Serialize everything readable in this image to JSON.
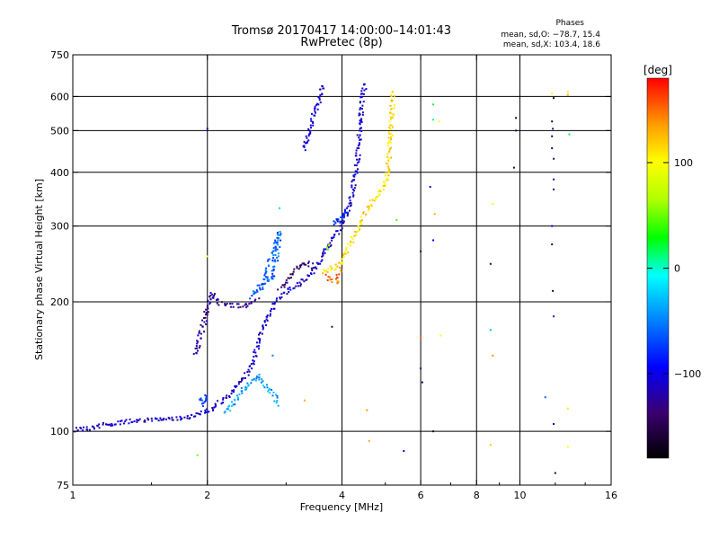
{
  "header": {
    "title": "Tromsø 20170417 14:00:00–14:01:43",
    "subtitle": "RwPretec (8p)"
  },
  "phase_box": {
    "title": "Phases",
    "line_o": "mean, sd,O: −78.7, 15.4",
    "line_x": "mean, sd,X: 103.4, 18.6"
  },
  "colorbar": {
    "unit": "[deg]",
    "range": [
      -180,
      180
    ],
    "ticks": [
      {
        "value": 100,
        "label": "100"
      },
      {
        "value": 0,
        "label": "0"
      },
      {
        "value": -100,
        "label": "−100"
      }
    ]
  },
  "chart_data": {
    "type": "scatter",
    "xlabel": "Frequency [MHz]",
    "ylabel": "Stationary phase Virtual Height [km]",
    "xscale": "log",
    "yscale": "log",
    "xlim": [
      1,
      16
    ],
    "ylim": [
      75,
      750
    ],
    "xticks": [
      {
        "value": 1,
        "label": "1"
      },
      {
        "value": 2,
        "label": "2"
      },
      {
        "value": 4,
        "label": "4"
      },
      {
        "value": 6,
        "label": "6"
      },
      {
        "value": 8,
        "label": "8"
      },
      {
        "value": 10,
        "label": "10"
      },
      {
        "value": 16,
        "label": "16"
      }
    ],
    "yticks": [
      {
        "value": 75,
        "label": "75"
      },
      {
        "value": 100,
        "label": "100"
      },
      {
        "value": 200,
        "label": "200"
      },
      {
        "value": 300,
        "label": "300"
      },
      {
        "value": 400,
        "label": "400"
      },
      {
        "value": 500,
        "label": "500"
      },
      {
        "value": 600,
        "label": "600"
      },
      {
        "value": 750,
        "label": "750"
      }
    ],
    "grid_x": [
      2,
      4,
      6,
      8,
      10
    ],
    "grid_y": [
      100,
      200,
      300,
      400,
      500,
      600
    ],
    "traces": [
      {
        "phase": -110,
        "points": [
          [
            1.0,
            101
          ],
          [
            1.1,
            102
          ],
          [
            1.2,
            104
          ],
          [
            1.3,
            105
          ],
          [
            1.45,
            106
          ],
          [
            1.6,
            107
          ],
          [
            1.8,
            108
          ],
          [
            1.95,
            110
          ],
          [
            2.05,
            113
          ],
          [
            2.15,
            118
          ],
          [
            2.25,
            122
          ],
          [
            2.35,
            128
          ],
          [
            2.45,
            136
          ],
          [
            2.55,
            148
          ],
          [
            2.6,
            160
          ],
          [
            2.7,
            180
          ],
          [
            2.8,
            195
          ],
          [
            2.9,
            205
          ],
          [
            3.0,
            212
          ],
          [
            3.2,
            220
          ],
          [
            3.4,
            232
          ],
          [
            3.55,
            248
          ],
          [
            3.7,
            265
          ],
          [
            3.85,
            282
          ],
          [
            4.0,
            300
          ],
          [
            4.1,
            320
          ],
          [
            4.2,
            350
          ],
          [
            4.3,
            400
          ],
          [
            4.35,
            450
          ],
          [
            4.4,
            520
          ],
          [
            4.45,
            600
          ],
          [
            4.5,
            650
          ]
        ]
      },
      {
        "phase": -125,
        "points": [
          [
            1.88,
            150
          ],
          [
            1.92,
            165
          ],
          [
            1.97,
            180
          ],
          [
            2.0,
            195
          ],
          [
            2.05,
            210
          ],
          [
            2.1,
            200
          ],
          [
            2.2,
            197
          ],
          [
            2.3,
            196
          ],
          [
            2.4,
            196
          ],
          [
            2.5,
            198
          ],
          [
            2.6,
            203
          ]
        ]
      },
      {
        "phase": -110,
        "points": [
          [
            3.3,
            450
          ],
          [
            3.35,
            480
          ],
          [
            3.4,
            510
          ],
          [
            3.45,
            540
          ],
          [
            3.5,
            560
          ],
          [
            3.55,
            590
          ],
          [
            3.6,
            620
          ],
          [
            3.65,
            640
          ]
        ]
      },
      {
        "phase": -60,
        "points": [
          [
            2.5,
            205
          ],
          [
            2.6,
            215
          ],
          [
            2.7,
            228
          ],
          [
            2.75,
            245
          ],
          [
            2.8,
            260
          ],
          [
            2.85,
            275
          ],
          [
            2.9,
            290
          ],
          [
            2.85,
            250
          ],
          [
            2.8,
            230
          ],
          [
            2.7,
            220
          ],
          [
            2.6,
            210
          ]
        ]
      },
      {
        "phase": -40,
        "points": [
          [
            2.2,
            110
          ],
          [
            2.3,
            118
          ],
          [
            2.4,
            125
          ],
          [
            2.5,
            130
          ],
          [
            2.6,
            135
          ],
          [
            2.7,
            128
          ],
          [
            2.8,
            122
          ],
          [
            2.9,
            115
          ]
        ]
      },
      {
        "phase": -140,
        "points": [
          [
            2.9,
            215
          ],
          [
            3.0,
            222
          ],
          [
            3.1,
            232
          ],
          [
            3.2,
            240
          ],
          [
            3.3,
            247
          ],
          [
            3.4,
            244
          ],
          [
            3.5,
            238
          ]
        ]
      },
      {
        "phase": -70,
        "points": [
          [
            1.95,
            115
          ],
          [
            2.0,
            120
          ],
          [
            1.9,
            118
          ]
        ]
      },
      {
        "phase": -80,
        "points": [
          [
            3.9,
            305
          ],
          [
            4.0,
            315
          ],
          [
            4.1,
            325
          ],
          [
            3.8,
            300
          ]
        ]
      },
      {
        "phase": 110,
        "points": [
          [
            3.6,
            235
          ],
          [
            3.75,
            238
          ],
          [
            3.85,
            240
          ],
          [
            4.0,
            248
          ],
          [
            4.1,
            262
          ],
          [
            4.2,
            278
          ],
          [
            4.3,
            292
          ],
          [
            4.4,
            305
          ],
          [
            4.5,
            318
          ],
          [
            4.6,
            332
          ],
          [
            4.7,
            345
          ],
          [
            4.8,
            352
          ],
          [
            4.9,
            365
          ],
          [
            5.0,
            380
          ],
          [
            5.05,
            400
          ],
          [
            5.1,
            430
          ],
          [
            5.12,
            460
          ],
          [
            5.15,
            500
          ],
          [
            5.18,
            560
          ],
          [
            5.2,
            620
          ]
        ]
      },
      {
        "phase": 150,
        "points": [
          [
            3.7,
            230
          ],
          [
            3.8,
            225
          ],
          [
            3.9,
            222
          ],
          [
            3.95,
            240
          ]
        ]
      },
      {
        "phase": 60,
        "points": [
          [
            3.7,
            265
          ],
          [
            3.75,
            270
          ]
        ]
      }
    ],
    "sparse_points": [
      {
        "f": 6.4,
        "h": 575,
        "phase": 20
      },
      {
        "f": 6.4,
        "h": 530,
        "phase": 10
      },
      {
        "f": 6.6,
        "h": 525,
        "phase": 100
      },
      {
        "f": 6.3,
        "h": 370,
        "phase": -110
      },
      {
        "f": 6.45,
        "h": 320,
        "phase": 130
      },
      {
        "f": 6.0,
        "h": 262,
        "phase": -150
      },
      {
        "f": 6.4,
        "h": 278,
        "phase": -100
      },
      {
        "f": 6.0,
        "h": 165,
        "phase": 150
      },
      {
        "f": 6.0,
        "h": 140,
        "phase": -130
      },
      {
        "f": 6.65,
        "h": 167,
        "phase": 100
      },
      {
        "f": 6.05,
        "h": 130,
        "phase": -150
      },
      {
        "f": 6.4,
        "h": 100,
        "phase": -160
      },
      {
        "f": 8.7,
        "h": 338,
        "phase": 100
      },
      {
        "f": 8.6,
        "h": 245,
        "phase": -150
      },
      {
        "f": 8.6,
        "h": 172,
        "phase": -30
      },
      {
        "f": 8.7,
        "h": 150,
        "phase": 140
      },
      {
        "f": 8.6,
        "h": 93,
        "phase": 120
      },
      {
        "f": 9.8,
        "h": 535,
        "phase": -160
      },
      {
        "f": 9.8,
        "h": 500,
        "phase": -150
      },
      {
        "f": 9.7,
        "h": 410,
        "phase": -160
      },
      {
        "f": 11.8,
        "h": 610,
        "phase": 100
      },
      {
        "f": 11.9,
        "h": 595,
        "phase": -160
      },
      {
        "f": 11.8,
        "h": 525,
        "phase": -160
      },
      {
        "f": 11.85,
        "h": 505,
        "phase": -140
      },
      {
        "f": 11.8,
        "h": 485,
        "phase": -160
      },
      {
        "f": 11.8,
        "h": 455,
        "phase": -150
      },
      {
        "f": 11.9,
        "h": 430,
        "phase": -140
      },
      {
        "f": 11.9,
        "h": 385,
        "phase": -110
      },
      {
        "f": 11.9,
        "h": 365,
        "phase": -130
      },
      {
        "f": 11.8,
        "h": 300,
        "phase": -100
      },
      {
        "f": 11.8,
        "h": 272,
        "phase": -150
      },
      {
        "f": 11.85,
        "h": 212,
        "phase": -160
      },
      {
        "f": 11.9,
        "h": 185,
        "phase": -90
      },
      {
        "f": 11.4,
        "h": 120,
        "phase": -60
      },
      {
        "f": 11.9,
        "h": 104,
        "phase": -110
      },
      {
        "f": 12.0,
        "h": 80,
        "phase": -160
      },
      {
        "f": 12.8,
        "h": 615,
        "phase": 110
      },
      {
        "f": 12.8,
        "h": 605,
        "phase": 130
      },
      {
        "f": 12.9,
        "h": 490,
        "phase": 20
      },
      {
        "f": 12.8,
        "h": 113,
        "phase": 110
      },
      {
        "f": 12.8,
        "h": 92,
        "phase": 100
      },
      {
        "f": 3.3,
        "h": 118,
        "phase": 130
      },
      {
        "f": 3.8,
        "h": 175,
        "phase": -150
      },
      {
        "f": 4.55,
        "h": 112,
        "phase": 140
      },
      {
        "f": 4.6,
        "h": 95,
        "phase": 130
      },
      {
        "f": 5.3,
        "h": 310,
        "phase": 40
      },
      {
        "f": 5.5,
        "h": 90,
        "phase": -100
      },
      {
        "f": 1.9,
        "h": 88,
        "phase": 50
      },
      {
        "f": 2.0,
        "h": 255,
        "phase": 100
      },
      {
        "f": 2.0,
        "h": 505,
        "phase": -100
      },
      {
        "f": 2.9,
        "h": 330,
        "phase": -20
      },
      {
        "f": 2.8,
        "h": 150,
        "phase": -50
      }
    ]
  }
}
